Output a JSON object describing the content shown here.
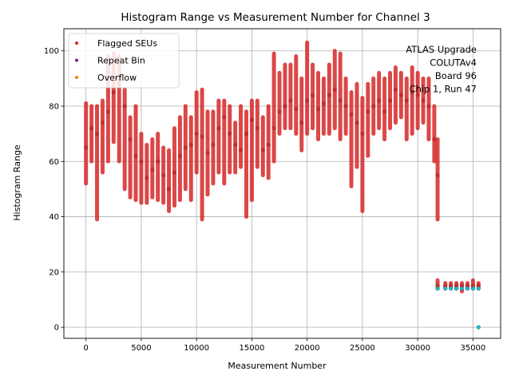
{
  "chart_data": {
    "type": "scatter",
    "title": "Histogram Range vs Measurement Number for Channel 3",
    "xlabel": "Measurement Number",
    "ylabel": "Histogram Range",
    "xlim": [
      -2000,
      37500
    ],
    "ylim": [
      -4,
      108
    ],
    "xticks": [
      0,
      5000,
      10000,
      15000,
      20000,
      25000,
      30000,
      35000
    ],
    "yticks": [
      0,
      20,
      40,
      60,
      80,
      100
    ],
    "grid": true,
    "legend_position": "top-left",
    "legend": [
      {
        "label": "Flagged SEUs",
        "color": "#d62728"
      },
      {
        "label": "Repeat Bin",
        "color": "#7a1f8f"
      },
      {
        "label": "Overflow",
        "color": "#ff7f0e"
      }
    ],
    "annotation_lines": [
      "ATLAS Upgrade",
      "COLUTAv4",
      "Board 96",
      "Chip 1, Run 47"
    ],
    "series": [
      {
        "name": "Flagged SEUs",
        "color": "#d62728",
        "x": [
          0,
          500,
          1000,
          1500,
          2000,
          2500,
          3000,
          3500,
          4000,
          4500,
          5000,
          5500,
          6000,
          6500,
          7000,
          7500,
          8000,
          8500,
          9000,
          9500,
          10000,
          10500,
          11000,
          11500,
          12000,
          12500,
          13000,
          13500,
          14000,
          14500,
          15000,
          15500,
          16000,
          16500,
          17000,
          17500,
          18000,
          18500,
          19000,
          19500,
          20000,
          20500,
          21000,
          21500,
          22000,
          22500,
          23000,
          23500,
          24000,
          24500,
          25000,
          25500,
          26000,
          26500,
          27000,
          27500,
          28000,
          28500,
          29000,
          29500,
          30000,
          30500,
          31000,
          31500,
          31800
        ],
        "y": [
          65,
          72,
          70,
          74,
          78,
          85,
          88,
          80,
          68,
          62,
          60,
          54,
          57,
          60,
          55,
          50,
          56,
          62,
          65,
          66,
          70,
          69,
          63,
          66,
          72,
          76,
          70,
          66,
          64,
          70,
          75,
          72,
          64,
          66,
          72,
          78,
          80,
          82,
          79,
          74,
          82,
          84,
          79,
          81,
          84,
          86,
          82,
          80,
          77,
          74,
          70,
          78,
          80,
          82,
          78,
          82,
          86,
          84,
          82,
          85,
          84,
          82,
          80,
          68,
          55
        ],
        "y_low": [
          52,
          60,
          39,
          56,
          60,
          67,
          60,
          50,
          47,
          46,
          45,
          45,
          47,
          46,
          45,
          42,
          44,
          46,
          50,
          46,
          56,
          39,
          48,
          52,
          56,
          52,
          56,
          56,
          58,
          40,
          46,
          58,
          55,
          54,
          60,
          70,
          72,
          72,
          70,
          64,
          70,
          72,
          68,
          70,
          70,
          72,
          68,
          70,
          51,
          58,
          42,
          62,
          70,
          72,
          68,
          72,
          74,
          76,
          68,
          70,
          72,
          74,
          68,
          60,
          39
        ],
        "y_high": [
          81,
          80,
          80,
          82,
          98,
          99,
          98,
          86,
          76,
          80,
          70,
          66,
          68,
          70,
          65,
          64,
          72,
          76,
          80,
          76,
          85,
          86,
          78,
          78,
          82,
          82,
          80,
          74,
          80,
          78,
          82,
          82,
          76,
          80,
          99,
          92,
          95,
          95,
          98,
          90,
          103,
          95,
          92,
          90,
          95,
          100,
          99,
          90,
          85,
          88,
          83,
          88,
          90,
          92,
          90,
          92,
          94,
          92,
          90,
          94,
          92,
          90,
          90,
          80,
          68
        ]
      },
      {
        "name": "Flagged SEUs",
        "color": "#d62728",
        "x": [
          31800,
          32500,
          33000,
          33500,
          34000,
          34500,
          35000,
          35500
        ],
        "y": [
          15,
          15,
          15,
          15,
          15,
          15,
          15,
          15
        ],
        "y_low": [
          14,
          14,
          14,
          14,
          13,
          14,
          14,
          14
        ],
        "y_high": [
          17,
          16,
          16,
          16,
          16,
          16,
          17,
          16
        ]
      },
      {
        "name": "",
        "color": "#17becf",
        "x": [
          31800,
          32500,
          33000,
          33500,
          34000,
          34500,
          35000,
          35500,
          35500
        ],
        "y": [
          14,
          14,
          14,
          14,
          14,
          14,
          14,
          14,
          0
        ]
      }
    ]
  }
}
